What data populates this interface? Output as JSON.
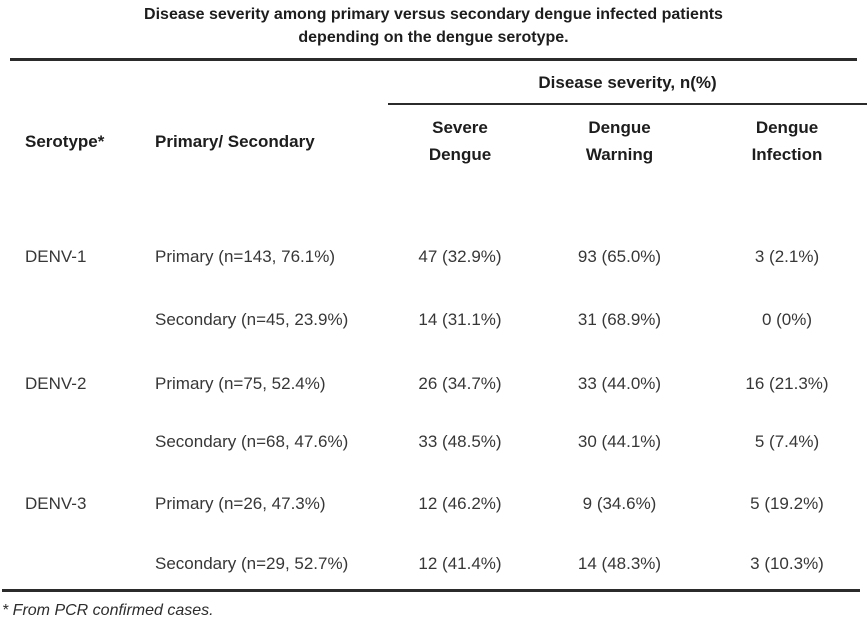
{
  "title": {
    "line1": "Disease severity among primary versus secondary dengue infected patients",
    "line2": "depending on the dengue serotype."
  },
  "table": {
    "group_header": "Disease severity, n(%)",
    "col_serotype": "Serotype*",
    "col_primary_secondary": "Primary/ Secondary",
    "col_severe_line1": "Severe",
    "col_severe_line2": "Dengue",
    "col_warning_line1": "Dengue",
    "col_warning_line2": "Warning",
    "col_infection_line1": "Dengue",
    "col_infection_line2": "Infection",
    "rows": [
      {
        "serotype": "DENV-1",
        "group": "Primary (n=143, 76.1%)",
        "severe": "47 (32.9%)",
        "warning": "93 (65.0%)",
        "infection": "3 (2.1%)"
      },
      {
        "serotype": "",
        "group": "Secondary (n=45, 23.9%)",
        "severe": "14 (31.1%)",
        "warning": "31 (68.9%)",
        "infection": "0 (0%)"
      },
      {
        "serotype": "DENV-2",
        "group": "Primary (n=75, 52.4%)",
        "severe": "26 (34.7%)",
        "warning": "33 (44.0%)",
        "infection": "16 (21.3%)"
      },
      {
        "serotype": "",
        "group": "Secondary (n=68, 47.6%)",
        "severe": "33 (48.5%)",
        "warning": "30 (44.1%)",
        "infection": "5 (7.4%)"
      },
      {
        "serotype": "DENV-3",
        "group": "Primary (n=26, 47.3%)",
        "severe": "12 (46.2%)",
        "warning": "9 (34.6%)",
        "infection": "5 (19.2%)"
      },
      {
        "serotype": "",
        "group": "Secondary (n=29, 52.7%)",
        "severe": "12 (41.4%)",
        "warning": "14 (48.3%)",
        "infection": "3 (10.3%)"
      }
    ]
  },
  "footnote": "* From PCR confirmed cases.",
  "colors": {
    "heading_text": "#1d1d1d",
    "body_text": "#373737",
    "rule": "#2b2b2b",
    "background": "#ffffff"
  }
}
